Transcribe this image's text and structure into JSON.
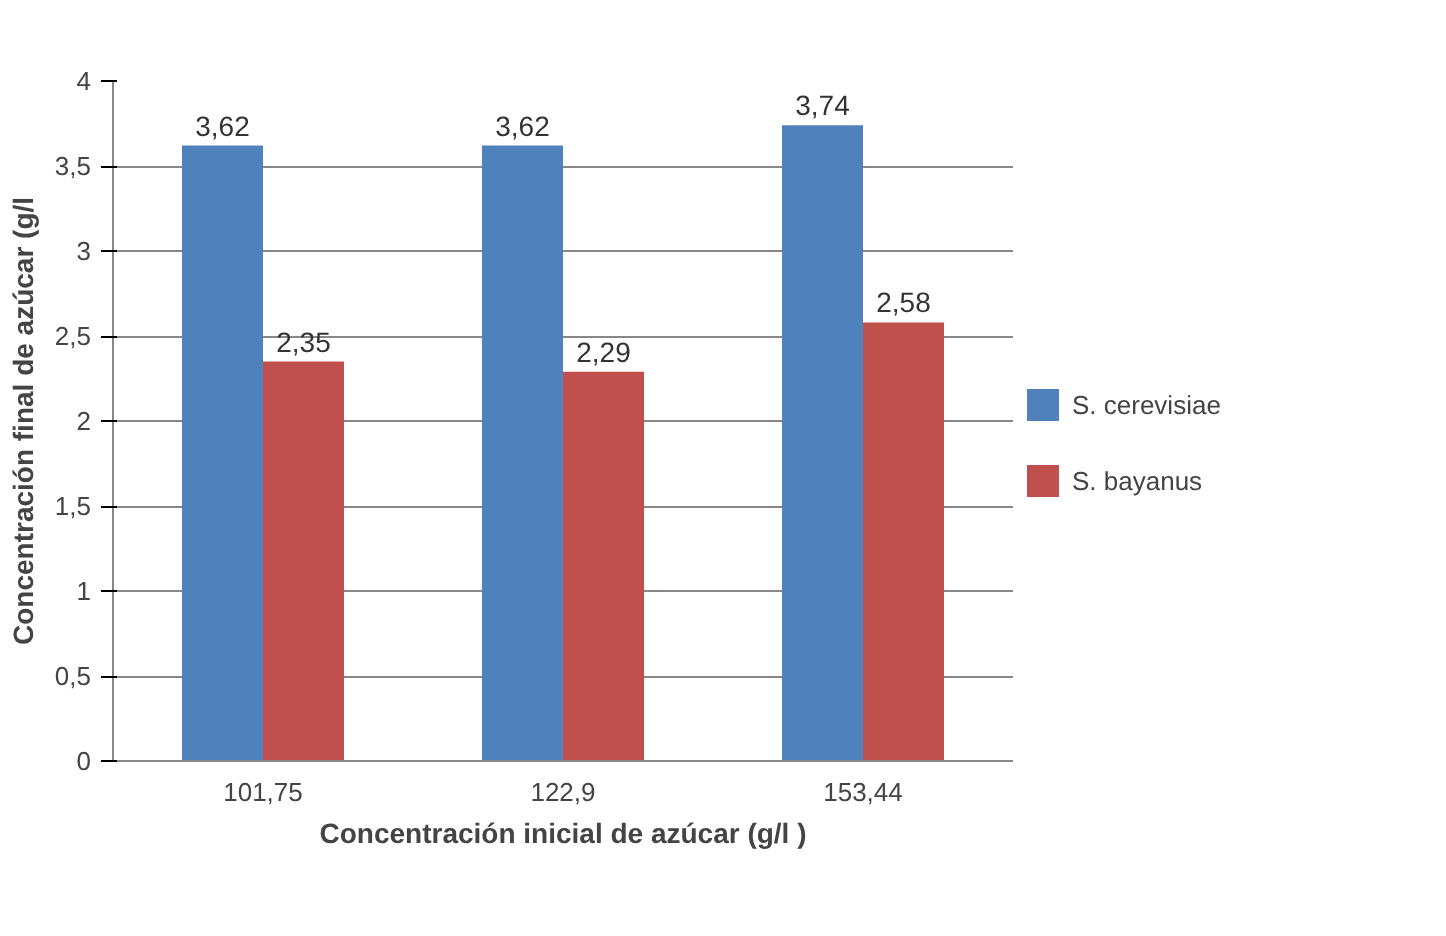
{
  "chart_data": {
    "type": "bar",
    "xlabel": "Concentración inicial de azúcar (g/l )",
    "ylabel": "Concentración final de azúcar (g/l",
    "categories": [
      "101,75",
      "122,9",
      "153,44"
    ],
    "series": [
      {
        "name": "S. cerevisiae",
        "color": "#4f81bd",
        "values": [
          3.62,
          3.62,
          3.74
        ],
        "value_labels": [
          "3,62",
          "3,62",
          "3,74"
        ]
      },
      {
        "name": "S. bayanus",
        "color": "#c0504d",
        "values": [
          2.35,
          2.29,
          2.58
        ],
        "value_labels": [
          "2,35",
          "2,29",
          "2,58"
        ]
      }
    ],
    "ylim": [
      0,
      4
    ],
    "yticks": [
      0,
      {
        "value": 0.5,
        "label": "0,5"
      },
      1,
      {
        "value": 1.5,
        "label": "1,5"
      },
      2,
      {
        "value": 2.5,
        "label": "2,5"
      },
      3,
      {
        "value": 3.5,
        "label": "3,5"
      },
      4
    ],
    "grid": "y",
    "legend": "right"
  }
}
